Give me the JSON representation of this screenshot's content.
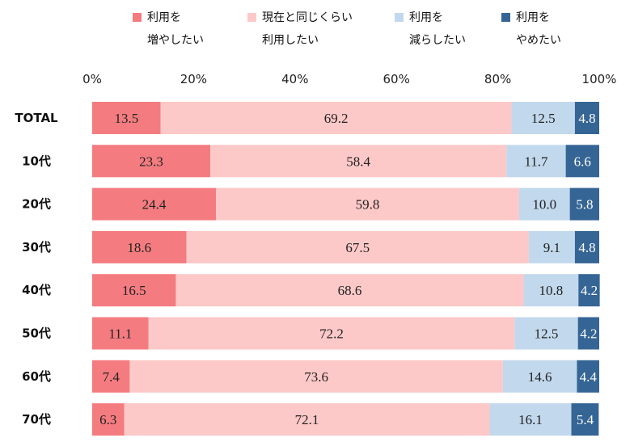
{
  "chart_data": {
    "type": "bar",
    "orientation": "horizontal",
    "stacked": true,
    "percent_stacked": true,
    "title": "",
    "xlabel": "",
    "ylabel": "",
    "xlim": [
      0,
      100
    ],
    "x_ticks": [
      "0%",
      "20%",
      "40%",
      "60%",
      "80%",
      "100%"
    ],
    "grid": false,
    "legend_position": "top",
    "categories": [
      "TOTAL",
      "10代",
      "20代",
      "30代",
      "40代",
      "50代",
      "60代",
      "70代"
    ],
    "series": [
      {
        "name": "利用を増やしたい",
        "legend_line1": "利用を",
        "legend_line2": "増やしたい",
        "color": "#f47c80",
        "values": [
          13.5,
          23.3,
          24.4,
          18.6,
          16.5,
          11.1,
          7.4,
          6.3
        ]
      },
      {
        "name": "現在と同じくらい利用したい",
        "legend_line1": "現在と同じくらい",
        "legend_line2": "利用したい",
        "color": "#fdc8c8",
        "values": [
          69.2,
          58.4,
          59.8,
          67.5,
          68.6,
          72.2,
          73.6,
          72.1
        ]
      },
      {
        "name": "利用を減らしたい",
        "legend_line1": "利用を",
        "legend_line2": "減らしたい",
        "color": "#c2d8ec",
        "values": [
          12.5,
          11.7,
          10.0,
          9.1,
          10.8,
          12.5,
          14.6,
          16.1
        ]
      },
      {
        "name": "利用をやめたい",
        "legend_line1": "利用を",
        "legend_line2": "やめたい",
        "color": "#356595",
        "values": [
          4.8,
          6.6,
          5.8,
          4.8,
          4.2,
          4.2,
          4.4,
          5.4
        ]
      }
    ]
  }
}
